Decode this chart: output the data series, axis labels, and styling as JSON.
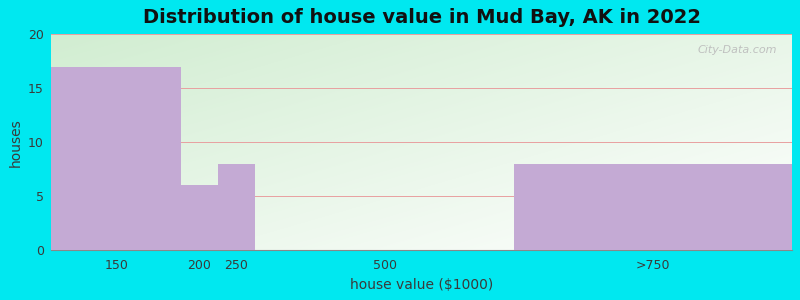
{
  "title": "Distribution of house value in Mud Bay, AK in 2022",
  "xlabel": "house value ($1000)",
  "ylabel": "houses",
  "bar_labels": [
    "150",
    "200",
    "250",
    "500",
    ">750"
  ],
  "bar_values": [
    17,
    6,
    8,
    0,
    8
  ],
  "bar_color": "#c4aad4",
  "ylim": [
    0,
    20
  ],
  "yticks": [
    0,
    5,
    10,
    15,
    20
  ],
  "background_outer": "#00e8f0",
  "background_top_left": "#d4ecd4",
  "background_bottom_right": "#f0f8f0",
  "grid_color": "#e8a0a0",
  "title_fontsize": 14,
  "axis_label_fontsize": 10,
  "tick_fontsize": 9,
  "watermark_text": "City-Data.com",
  "x_edges": [
    0,
    175,
    225,
    275,
    625,
    1000
  ],
  "tick_positions": [
    87.5,
    200,
    250,
    450,
    812.5
  ],
  "xlim": [
    0,
    1000
  ]
}
